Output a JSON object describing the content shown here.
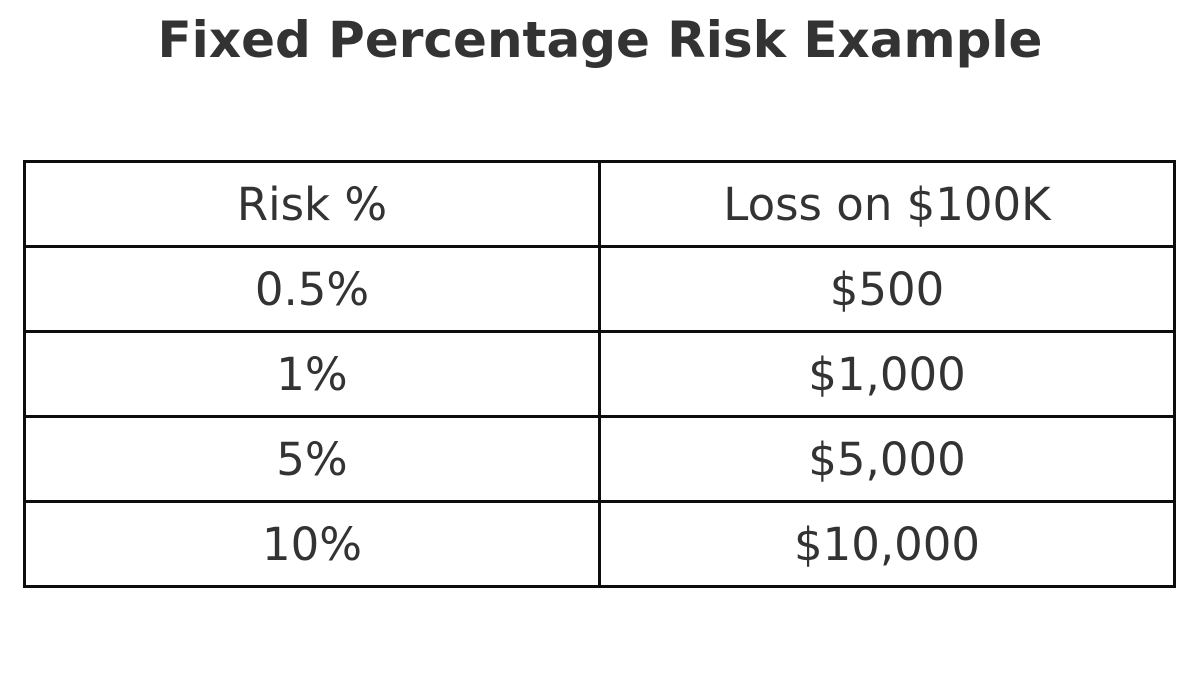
{
  "title": "Fixed Percentage Risk Example",
  "colors": {
    "text": "#333333",
    "border": "#0d0d0d",
    "background": "#ffffff"
  },
  "chart_data": {
    "type": "table",
    "title": "Fixed Percentage Risk Example",
    "columns": [
      "Risk %",
      "Loss on $100K"
    ],
    "rows": [
      [
        "0.5%",
        "$500"
      ],
      [
        "1%",
        "$1,000"
      ],
      [
        "5%",
        "$5,000"
      ],
      [
        "10%",
        "$10,000"
      ]
    ],
    "risk_percent_values": [
      0.5,
      1,
      5,
      10
    ],
    "loss_on_100k_values": [
      500,
      1000,
      5000,
      10000
    ],
    "layout": {
      "grid": "full-borders",
      "column_split": "50/50",
      "legend": "none"
    }
  }
}
